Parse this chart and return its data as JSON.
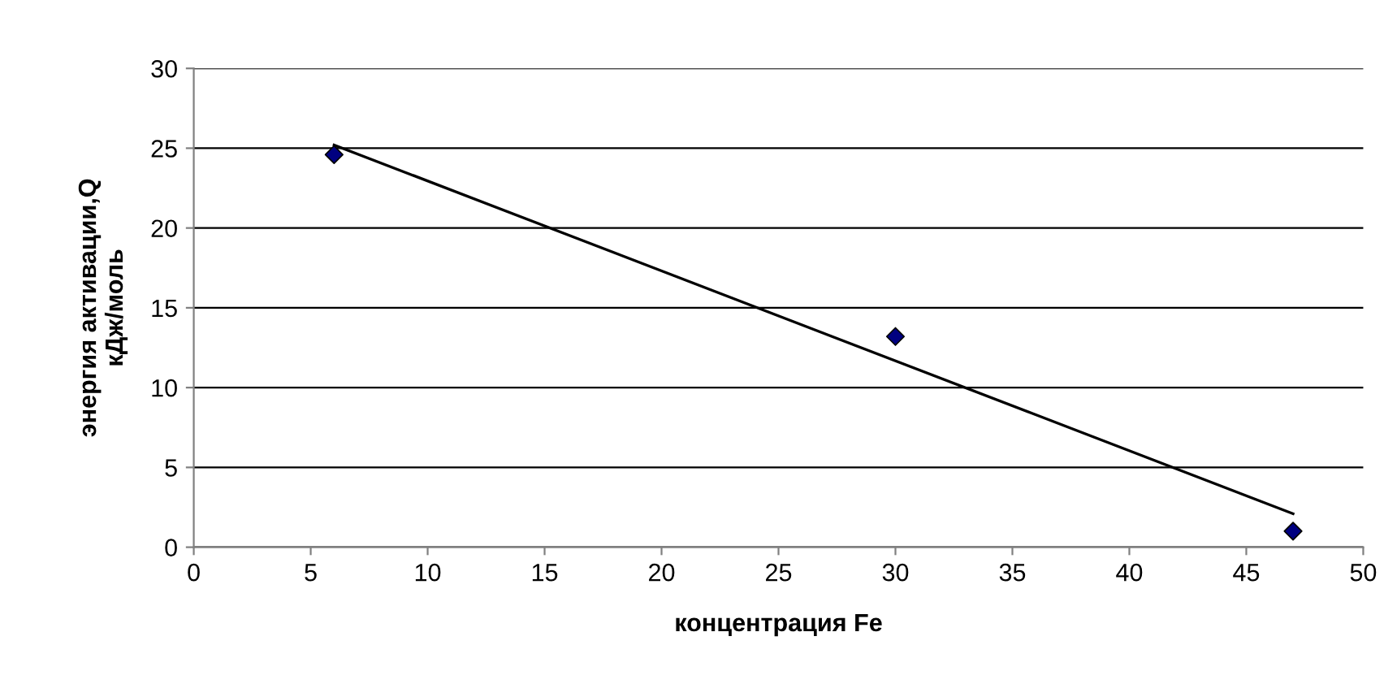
{
  "chart_data": {
    "type": "scatter",
    "xlabel": "концентрация Fe",
    "ylabel": "энергия активации,Q\nкДж/моль",
    "series": [
      {
        "color": "#000080",
        "x": [
          6,
          30,
          47
        ],
        "values": [
          24.6,
          13.2,
          1.0
        ],
        "marker": "diamond"
      },
      {
        "type": "line",
        "color": "#000000",
        "x": [
          6,
          47
        ],
        "values": [
          25.2,
          2.1
        ],
        "marker": "none",
        "line_style": "solid"
      }
    ],
    "xlim": [
      0,
      50
    ],
    "xticks": [
      0,
      5,
      10,
      15,
      20,
      25,
      30,
      35,
      40,
      45,
      50
    ],
    "ylim": [
      0,
      30
    ],
    "yticks": [
      0,
      5,
      10,
      15,
      20,
      25,
      30
    ],
    "grid": "y",
    "legend": false
  }
}
